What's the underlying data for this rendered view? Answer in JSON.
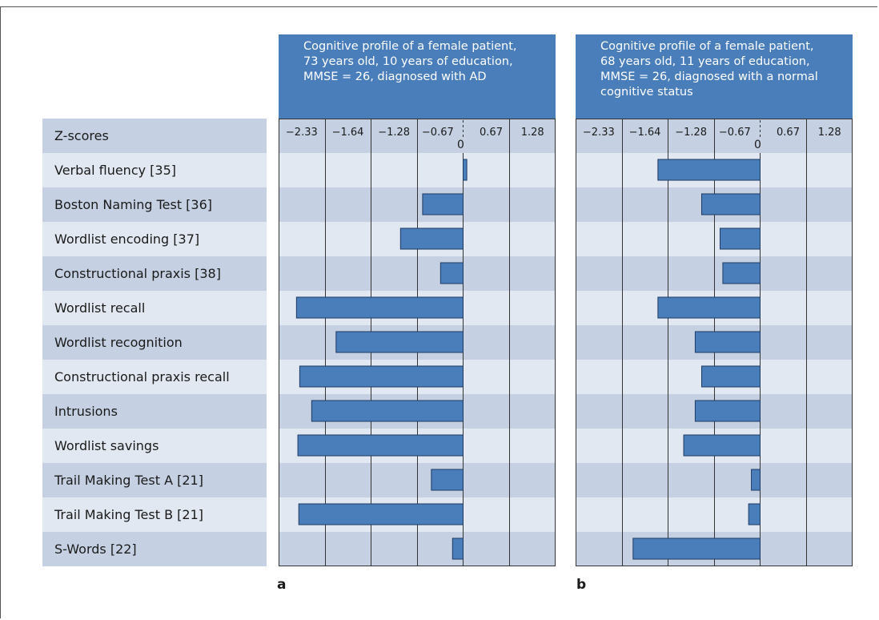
{
  "row_labels": [
    "Z-scores",
    "Verbal fluency [35]",
    "Boston Naming Test [36]",
    "Wordlist encoding [37]",
    "Constructional praxis [38]",
    "Wordlist recall",
    "Wordlist recognition",
    "Constructional praxis recall",
    "Intrusions",
    "Wordlist savings",
    "Trail Making Test A [21]",
    "Trail Making Test B [21]",
    "S-Words [22]"
  ],
  "panels": {
    "a": {
      "letter": "a",
      "header_lines": [
        "Cognitive profile of a female patient,",
        "73 years old, 10 years of education,",
        "MMSE = 26, diagnosed with AD"
      ]
    },
    "b": {
      "letter": "b",
      "header_lines": [
        "Cognitive profile of a female patient,",
        "68 years old, 11 years of education,",
        "MMSE = 26, diagnosed with a normal",
        "cognitive status"
      ]
    }
  },
  "chart_data": [
    {
      "type": "bar",
      "orientation": "horizontal",
      "panel": "a",
      "categories": [
        "Verbal fluency [35]",
        "Boston Naming Test [36]",
        "Wordlist encoding [37]",
        "Constructional praxis [38]",
        "Wordlist recall",
        "Wordlist recognition",
        "Constructional praxis recall",
        "Intrusions",
        "Wordlist savings",
        "Trail Making Test A [21]",
        "Trail Making Test B [21]",
        "S-Words [22]"
      ],
      "values": [
        0.08,
        -0.88,
        -1.36,
        -0.49,
        -3.62,
        -2.76,
        -3.55,
        -3.29,
        -3.59,
        -0.69,
        -3.57,
        -0.23
      ],
      "xlabel": "Z-scores",
      "tick_labels": [
        "−2.33",
        "−1.64",
        "−1.28",
        "−0.67",
        "0.67",
        "1.28"
      ],
      "zero_label": "0",
      "xlim": [
        -4.0,
        2.0
      ],
      "grid": true
    },
    {
      "type": "bar",
      "orientation": "horizontal",
      "panel": "b",
      "categories": [
        "Verbal fluency [35]",
        "Boston Naming Test [36]",
        "Wordlist encoding [37]",
        "Constructional praxis [38]",
        "Wordlist recall",
        "Wordlist recognition",
        "Constructional praxis recall",
        "Intrusions",
        "Wordlist savings",
        "Trail Making Test A [21]",
        "Trail Making Test B [21]",
        "S-Words [22]"
      ],
      "values": [
        -2.22,
        -1.27,
        -0.87,
        -0.81,
        -2.22,
        -1.41,
        -1.27,
        -1.41,
        -1.66,
        -0.19,
        -0.25,
        -2.76
      ],
      "xlabel": "Z-scores",
      "tick_labels": [
        "−2.33",
        "−1.64",
        "−1.28",
        "−0.67",
        "0.67",
        "1.28"
      ],
      "zero_label": "0",
      "xlim": [
        -4.0,
        2.0
      ],
      "grid": true
    }
  ],
  "colors": {
    "bar": "#4a7ebb",
    "header": "#4a7ebb",
    "row_dark": "#c5d1e3",
    "row_light": "#e2e8f1"
  }
}
